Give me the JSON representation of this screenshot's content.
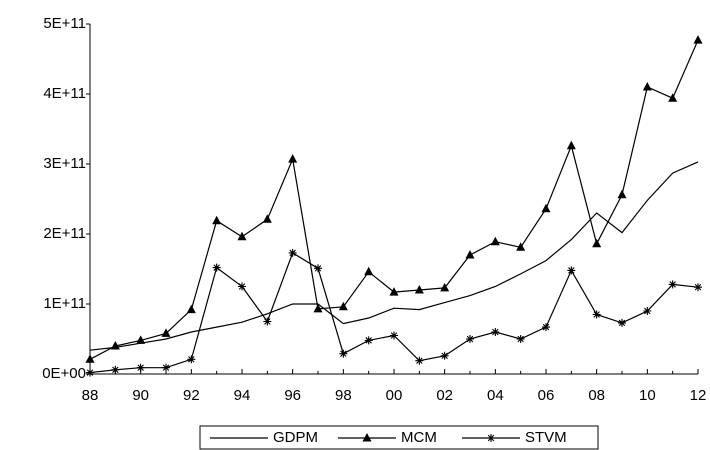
{
  "chart_data": {
    "type": "line",
    "categories": [
      "88",
      null,
      "90",
      null,
      "92",
      null,
      "94",
      null,
      "96",
      null,
      "98",
      null,
      "00",
      null,
      "02",
      null,
      "04",
      null,
      "06",
      null,
      "08",
      null,
      "10",
      null,
      "12"
    ],
    "series": [
      {
        "name": "GDPM",
        "color": "#000000",
        "marker": "none",
        "values": [
          34000000000,
          38000000000,
          44000000000,
          50000000000,
          60000000000,
          67000000000,
          74000000000,
          86000000000,
          100000000000,
          100000000000,
          72000000000,
          80000000000,
          94000000000,
          92000000000,
          102000000000,
          112000000000,
          125000000000,
          143000000000,
          162000000000,
          192000000000,
          230000000000,
          202000000000,
          248000000000,
          287000000000,
          303000000000
        ]
      },
      {
        "name": "MCM",
        "color": "#000000",
        "marker": "triangle",
        "values": [
          21000000000,
          40000000000,
          48000000000,
          58000000000,
          92000000000,
          219000000000,
          196000000000,
          221000000000,
          307000000000,
          93000000000,
          96000000000,
          146000000000,
          117000000000,
          120000000000,
          123000000000,
          170000000000,
          189000000000,
          181000000000,
          236000000000,
          326000000000,
          186000000000,
          256000000000,
          410000000000,
          394000000000,
          477000000000
        ]
      },
      {
        "name": "STVM",
        "color": "#000000",
        "marker": "star",
        "values": [
          2000000000,
          6000000000,
          9000000000,
          9000000000,
          21000000000,
          152000000000,
          125000000000,
          75000000000,
          173000000000,
          151000000000,
          29000000000,
          48000000000,
          55000000000,
          19000000000,
          26000000000,
          50000000000,
          60000000000,
          50000000000,
          67000000000,
          148000000000,
          85000000000,
          73000000000,
          90000000000,
          128000000000,
          124000000000
        ]
      }
    ],
    "ylim": [
      0,
      500000000000
    ],
    "yticks": [
      {
        "value": 0,
        "label": "0E+00"
      },
      {
        "value": 100000000000,
        "label": "1E+11"
      },
      {
        "value": 200000000000,
        "label": "2E+11"
      },
      {
        "value": 300000000000,
        "label": "3E+11"
      },
      {
        "value": 400000000000,
        "label": "4E+11"
      },
      {
        "value": 500000000000,
        "label": "5E+11"
      }
    ],
    "grid": false,
    "legend": "bottom"
  }
}
